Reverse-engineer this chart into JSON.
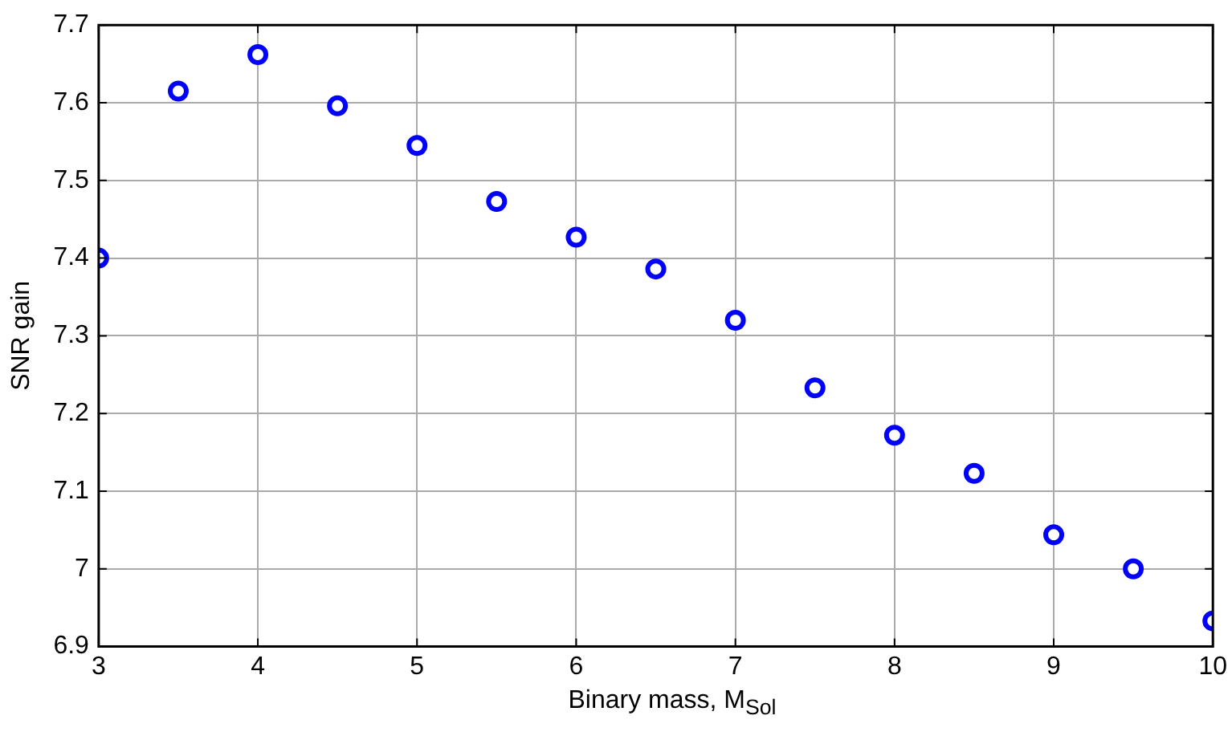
{
  "chart_data": {
    "type": "scatter",
    "xlabel": "Binary mass, M$_{Sol}$",
    "ylabel": "SNR gain",
    "x": [
      3,
      3.5,
      4,
      4.5,
      5,
      5.5,
      6,
      6.5,
      7,
      7.5,
      8,
      8.5,
      9,
      9.5,
      10
    ],
    "series": [
      {
        "color": "#0000ff",
        "values": [
          7.4,
          7.615,
          7.662,
          7.596,
          7.545,
          7.473,
          7.427,
          7.386,
          7.32,
          7.233,
          7.172,
          7.123,
          7.044,
          7.0,
          6.933
        ]
      }
    ],
    "xlim": [
      3,
      10
    ],
    "xticks": [
      3,
      4,
      5,
      6,
      7,
      8,
      9,
      10
    ],
    "ylim": [
      6.9,
      7.7
    ],
    "yticks": [
      6.9,
      7,
      7.1,
      7.2,
      7.3,
      7.4,
      7.5,
      7.6,
      7.7
    ],
    "grid": true,
    "marker": "circle",
    "legend": false
  }
}
